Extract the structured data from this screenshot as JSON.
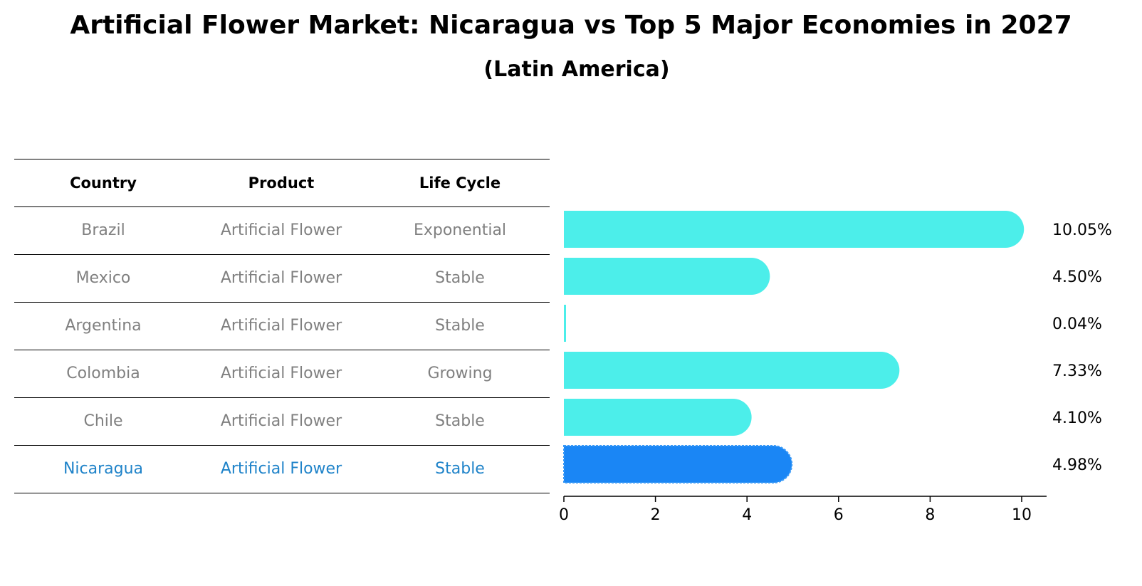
{
  "title": "Artificial Flower Market: Nicaragua vs Top 5 Major Economies in 2027",
  "subtitle": "(Latin America)",
  "table": {
    "headers": [
      "Country",
      "Product",
      "Life Cycle"
    ],
    "rows": [
      {
        "country": "Brazil",
        "product": "Artificial Flower",
        "life_cycle": "Exponential"
      },
      {
        "country": "Mexico",
        "product": "Artificial Flower",
        "life_cycle": "Stable"
      },
      {
        "country": "Argentina",
        "product": "Artificial Flower",
        "life_cycle": "Stable"
      },
      {
        "country": "Colombia",
        "product": "Artificial Flower",
        "life_cycle": "Growing"
      },
      {
        "country": "Chile",
        "product": "Artificial Flower",
        "life_cycle": "Stable"
      },
      {
        "country": "Nicaragua",
        "product": "Artificial Flower",
        "life_cycle": "Stable"
      }
    ]
  },
  "colors": {
    "bar": "#4ceeea",
    "highlight_bar": "#1a86f5",
    "highlight_text": "#1f83c9",
    "muted_text": "#808080"
  },
  "chart_data": {
    "type": "bar",
    "orientation": "horizontal",
    "categories": [
      "Brazil",
      "Mexico",
      "Argentina",
      "Colombia",
      "Chile",
      "Nicaragua"
    ],
    "values": [
      10.05,
      4.5,
      0.04,
      7.33,
      4.1,
      4.98
    ],
    "value_labels": [
      "10.05%",
      "4.50%",
      "0.04%",
      "7.33%",
      "4.10%",
      "4.98%"
    ],
    "highlight": "Nicaragua",
    "xlim": [
      0,
      10.55
    ],
    "xticks": [
      0,
      2,
      4,
      6,
      8,
      10
    ],
    "xtick_labels": [
      "0",
      "2",
      "4",
      "6",
      "8",
      "10"
    ],
    "xlabel": "",
    "ylabel": "",
    "grid": false
  }
}
